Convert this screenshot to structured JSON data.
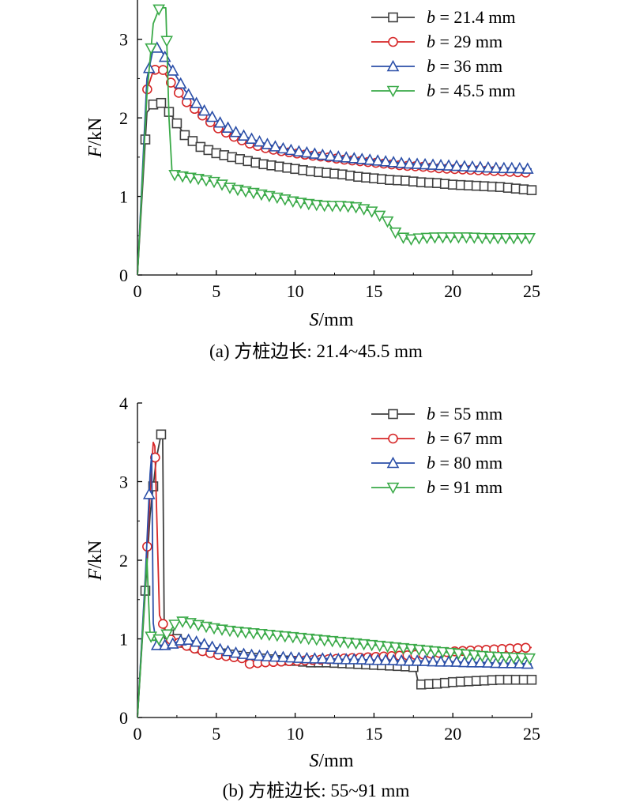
{
  "chart_data": [
    {
      "type": "line",
      "caption": "(a) 方桩边长: 21.4~45.5 mm",
      "xlabel": "S/mm",
      "ylabel": "F/kN",
      "xlim": [
        0,
        25
      ],
      "ylim": [
        0,
        3.5
      ],
      "xticks": [
        0,
        5,
        10,
        15,
        20,
        25
      ],
      "yticks": [
        0,
        1,
        2,
        3
      ],
      "grid": false,
      "legend_position": "top-right",
      "series": [
        {
          "name": "b = 21.4 mm",
          "b_value": "21.4",
          "unit": "mm",
          "color": "#404040",
          "marker": "square",
          "x": [
            0,
            0.6,
            1.0,
            1.4,
            1.6,
            2.1,
            3.0,
            4.0,
            5.0,
            6.0,
            7.0,
            8.0,
            9.0,
            10.0,
            11.0,
            12.0,
            13.0,
            14.0,
            15.0,
            16.0,
            17.0,
            18.0,
            19.0,
            20.0,
            21.0,
            22.0,
            23.0,
            24.0,
            25.0
          ],
          "y": [
            0,
            2.07,
            2.17,
            2.2,
            2.18,
            2.05,
            1.78,
            1.63,
            1.55,
            1.5,
            1.45,
            1.41,
            1.38,
            1.35,
            1.32,
            1.3,
            1.28,
            1.25,
            1.23,
            1.21,
            1.2,
            1.18,
            1.17,
            1.15,
            1.14,
            1.13,
            1.12,
            1.1,
            1.08
          ]
        },
        {
          "name": "b = 29 mm",
          "b_value": "29",
          "unit": "mm",
          "color": "#d62728",
          "marker": "circle",
          "x": [
            0,
            0.6,
            1.0,
            1.5,
            2.0,
            3.0,
            4.0,
            5.0,
            6.0,
            7.0,
            8.0,
            9.0,
            10.0,
            11.0,
            12.0,
            13.0,
            14.0,
            15.0,
            16.0,
            17.0,
            18.0,
            19.0,
            20.0,
            21.0,
            22.0,
            23.0,
            24.0,
            25.0
          ],
          "y": [
            0,
            2.35,
            2.6,
            2.65,
            2.48,
            2.22,
            2.05,
            1.88,
            1.77,
            1.68,
            1.62,
            1.58,
            1.55,
            1.52,
            1.5,
            1.47,
            1.45,
            1.43,
            1.41,
            1.39,
            1.38,
            1.36,
            1.35,
            1.34,
            1.33,
            1.32,
            1.31,
            1.3
          ]
        },
        {
          "name": "b = 36 mm",
          "b_value": "36",
          "unit": "mm",
          "color": "#2b4fa8",
          "marker": "triangle-up",
          "x": [
            0,
            0.6,
            1.0,
            1.4,
            2.0,
            3.0,
            4.0,
            5.0,
            6.0,
            7.0,
            8.0,
            9.0,
            10.0,
            11.0,
            12.0,
            13.0,
            14.0,
            15.0,
            16.0,
            17.0,
            18.0,
            19.0,
            20.0,
            21.0,
            22.0,
            23.0,
            24.0,
            25.0
          ],
          "y": [
            0,
            2.5,
            2.88,
            2.9,
            2.68,
            2.35,
            2.13,
            1.97,
            1.84,
            1.75,
            1.68,
            1.62,
            1.58,
            1.55,
            1.52,
            1.5,
            1.48,
            1.46,
            1.44,
            1.42,
            1.41,
            1.4,
            1.39,
            1.38,
            1.37,
            1.36,
            1.36,
            1.35
          ]
        },
        {
          "name": "b = 45.5 mm",
          "b_value": "45.5",
          "unit": "mm",
          "color": "#3aaa48",
          "marker": "triangle-down",
          "x": [
            0,
            0.6,
            1.0,
            1.4,
            1.8,
            2.0,
            2.2,
            3.0,
            4.0,
            5.0,
            6.0,
            7.0,
            8.0,
            9.0,
            10.0,
            11.0,
            12.0,
            13.0,
            14.0,
            15.0,
            15.8,
            16.3,
            16.8,
            17.2,
            18.0,
            19.0,
            20.0,
            21.0,
            22.0,
            23.0,
            24.0,
            25.0
          ],
          "y": [
            0,
            2.3,
            3.2,
            3.4,
            3.4,
            2.0,
            1.28,
            1.25,
            1.22,
            1.18,
            1.1,
            1.06,
            1.02,
            0.98,
            0.93,
            0.9,
            0.88,
            0.88,
            0.86,
            0.8,
            0.7,
            0.55,
            0.48,
            0.45,
            0.47,
            0.48,
            0.48,
            0.48,
            0.47,
            0.47,
            0.47,
            0.47
          ]
        }
      ]
    },
    {
      "type": "line",
      "caption": "(b) 方桩边长: 55~91 mm",
      "xlabel": "S/mm",
      "ylabel": "F/kN",
      "xlim": [
        0,
        25
      ],
      "ylim": [
        0,
        4
      ],
      "xticks": [
        0,
        5,
        10,
        15,
        20,
        25
      ],
      "yticks": [
        0,
        1,
        2,
        3,
        4
      ],
      "grid": false,
      "legend_position": "top-right",
      "series": [
        {
          "name": "b = 55 mm",
          "b_value": "55",
          "unit": "mm",
          "color": "#404040",
          "marker": "square",
          "x": [
            0,
            0.8,
            1.2,
            1.5,
            1.6,
            1.7,
            2.2,
            3.0,
            4.0,
            5.0,
            6.0,
            7.0,
            8.0,
            9.0,
            10.0,
            11.0,
            12.0,
            13.0,
            14.0,
            15.0,
            16.0,
            17.0,
            17.6,
            17.8,
            18.0,
            19.0,
            20.0,
            21.0,
            22.0,
            23.0,
            24.0,
            25.0
          ],
          "y": [
            0,
            2.58,
            3.3,
            3.6,
            3.6,
            1.1,
            1.03,
            0.95,
            0.88,
            0.83,
            0.8,
            0.77,
            0.75,
            0.73,
            0.72,
            0.7,
            0.7,
            0.69,
            0.68,
            0.67,
            0.66,
            0.65,
            0.64,
            0.45,
            0.42,
            0.43,
            0.45,
            0.46,
            0.47,
            0.48,
            0.48,
            0.48
          ]
        },
        {
          "name": "b = 67 mm",
          "b_value": "67",
          "unit": "mm",
          "color": "#d62728",
          "marker": "circle",
          "x": [
            0,
            0.6,
            0.9,
            1.0,
            1.1,
            1.4,
            2.0,
            3.0,
            4.0,
            5.0,
            6.0,
            6.8,
            7.0,
            8.0,
            9.0,
            10.0,
            11.0,
            12.0,
            13.0,
            14.0,
            15.0,
            16.0,
            17.0,
            18.0,
            19.0,
            20.0,
            21.0,
            22.0,
            23.0,
            24.0,
            25.0
          ],
          "y": [
            0,
            2.1,
            3.2,
            3.5,
            3.45,
            1.3,
            1.0,
            0.92,
            0.85,
            0.8,
            0.77,
            0.75,
            0.68,
            0.7,
            0.71,
            0.72,
            0.73,
            0.74,
            0.75,
            0.76,
            0.77,
            0.78,
            0.79,
            0.8,
            0.82,
            0.84,
            0.85,
            0.86,
            0.87,
            0.88,
            0.89
          ]
        },
        {
          "name": "b = 80 mm",
          "b_value": "80",
          "unit": "mm",
          "color": "#2b4fa8",
          "marker": "triangle-up",
          "x": [
            0,
            0.5,
            0.8,
            0.9,
            1.0,
            1.2,
            2.0,
            3.0,
            4.0,
            5.0,
            6.0,
            7.0,
            8.0,
            9.0,
            10.0,
            11.0,
            12.0,
            13.0,
            14.0,
            15.0,
            16.0,
            17.0,
            18.0,
            19.0,
            20.0,
            21.0,
            22.0,
            23.0,
            24.0,
            25.0
          ],
          "y": [
            0,
            1.8,
            3.1,
            3.35,
            1.2,
            0.92,
            0.92,
            1.0,
            0.95,
            0.88,
            0.83,
            0.8,
            0.78,
            0.77,
            0.76,
            0.75,
            0.75,
            0.74,
            0.74,
            0.73,
            0.73,
            0.72,
            0.72,
            0.71,
            0.71,
            0.7,
            0.7,
            0.69,
            0.69,
            0.68
          ]
        },
        {
          "name": "b = 91 mm",
          "b_value": "91",
          "unit": "mm",
          "color": "#3aaa48",
          "marker": "triangle-down",
          "x": [
            0,
            0.3,
            0.6,
            0.7,
            0.8,
            1.0,
            1.5,
            2.0,
            2.5,
            3.0,
            4.0,
            5.0,
            6.0,
            7.0,
            8.0,
            9.0,
            10.0,
            11.0,
            12.0,
            13.0,
            14.0,
            15.0,
            16.0,
            17.0,
            18.0,
            19.0,
            20.0,
            21.0,
            22.0,
            23.0,
            24.0,
            25.0
          ],
          "y": [
            0,
            1.0,
            2.02,
            1.5,
            1.05,
            0.98,
            1.0,
            1.08,
            1.22,
            1.22,
            1.17,
            1.13,
            1.1,
            1.08,
            1.06,
            1.04,
            1.02,
            1.0,
            0.98,
            0.96,
            0.94,
            0.92,
            0.9,
            0.88,
            0.86,
            0.84,
            0.82,
            0.8,
            0.78,
            0.77,
            0.76,
            0.75
          ]
        }
      ]
    }
  ]
}
